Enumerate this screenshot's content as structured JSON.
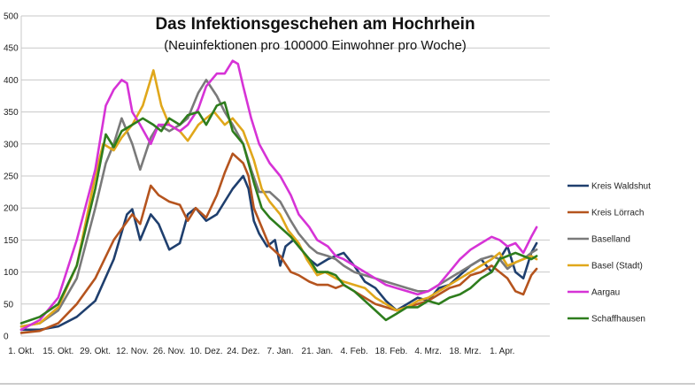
{
  "chart_data": {
    "type": "line",
    "title": "Das Infektionsgeschehen am Hochrhein",
    "subtitle": "(Neuinfektionen pro 100000 Einwohner pro Woche)",
    "x_ticks": [
      "1. Okt.",
      "15. Okt.",
      "29. Okt.",
      "12. Nov.",
      "26. Nov.",
      "10. Dez.",
      "24. Dez.",
      "7. Jan.",
      "21. Jan.",
      "4. Feb.",
      "18. Feb.",
      "4. Mrz.",
      "18. Mrz.",
      "1. Apr."
    ],
    "x_tick_days": [
      0,
      14,
      28,
      42,
      56,
      70,
      84,
      98,
      112,
      126,
      140,
      154,
      168,
      182
    ],
    "xlim": [
      0,
      200
    ],
    "ylim": [
      0,
      500
    ],
    "y_ticks": [
      0,
      50,
      100,
      150,
      200,
      250,
      300,
      350,
      400,
      450,
      500
    ],
    "grid": true,
    "legend_position": "right",
    "series": [
      {
        "name": "Kreis Waldshut",
        "color": "#1f3f6e",
        "x": [
          0,
          7,
          14,
          21,
          28,
          35,
          40,
          42,
          45,
          49,
          52,
          56,
          60,
          63,
          66,
          70,
          74,
          77,
          80,
          84,
          86,
          88,
          90,
          93,
          96,
          98,
          100,
          103,
          106,
          109,
          112,
          116,
          119,
          122,
          126,
          130,
          134,
          138,
          142,
          146,
          150,
          154,
          158,
          162,
          166,
          170,
          174,
          178,
          181,
          184,
          187,
          190,
          193,
          195
        ],
        "values": [
          10,
          10,
          15,
          30,
          55,
          120,
          190,
          198,
          150,
          190,
          175,
          135,
          145,
          190,
          200,
          180,
          190,
          210,
          230,
          250,
          230,
          180,
          160,
          140,
          150,
          110,
          140,
          150,
          135,
          120,
          110,
          120,
          125,
          130,
          110,
          85,
          75,
          55,
          40,
          50,
          60,
          55,
          75,
          80,
          95,
          110,
          120,
          100,
          120,
          140,
          100,
          90,
          130,
          145
        ]
      },
      {
        "name": "Kreis Lörrach",
        "color": "#b5541e",
        "x": [
          0,
          7,
          14,
          21,
          28,
          35,
          42,
          45,
          49,
          52,
          56,
          60,
          63,
          66,
          70,
          74,
          77,
          80,
          84,
          86,
          88,
          91,
          94,
          98,
          102,
          105,
          109,
          112,
          116,
          119,
          122,
          126,
          130,
          134,
          138,
          142,
          146,
          150,
          154,
          158,
          162,
          166,
          170,
          174,
          178,
          181,
          184,
          187,
          190,
          193,
          195
        ],
        "values": [
          5,
          8,
          20,
          50,
          90,
          150,
          190,
          175,
          235,
          220,
          210,
          205,
          180,
          200,
          185,
          220,
          255,
          285,
          270,
          250,
          200,
          170,
          140,
          125,
          100,
          95,
          85,
          80,
          80,
          75,
          80,
          70,
          60,
          50,
          45,
          40,
          45,
          50,
          55,
          65,
          75,
          80,
          95,
          100,
          110,
          100,
          90,
          70,
          65,
          95,
          105
        ]
      },
      {
        "name": "Baselland",
        "color": "#7a7a7a",
        "x": [
          0,
          7,
          14,
          21,
          28,
          32,
          35,
          38,
          42,
          45,
          49,
          52,
          56,
          60,
          63,
          67,
          70,
          74,
          77,
          80,
          84,
          87,
          90,
          94,
          98,
          102,
          105,
          109,
          112,
          116,
          119,
          122,
          126,
          130,
          134,
          138,
          142,
          146,
          150,
          154,
          158,
          162,
          166,
          170,
          174,
          178,
          181,
          184,
          187,
          190,
          193,
          195
        ],
        "values": [
          15,
          20,
          40,
          90,
          200,
          270,
          300,
          340,
          300,
          260,
          310,
          330,
          320,
          330,
          340,
          380,
          400,
          375,
          350,
          330,
          300,
          260,
          225,
          225,
          210,
          180,
          160,
          140,
          130,
          125,
          120,
          110,
          100,
          95,
          90,
          85,
          80,
          75,
          70,
          70,
          80,
          90,
          100,
          110,
          120,
          125,
          120,
          105,
          115,
          120,
          130,
          135
        ]
      },
      {
        "name": "Basel (Stadt)",
        "color": "#e0a71b",
        "x": [
          0,
          7,
          14,
          21,
          28,
          31,
          35,
          38,
          42,
          46,
          50,
          53,
          56,
          60,
          63,
          67,
          70,
          73,
          77,
          80,
          84,
          88,
          91,
          94,
          98,
          101,
          105,
          108,
          112,
          115,
          119,
          122,
          126,
          130,
          134,
          138,
          142,
          146,
          150,
          154,
          158,
          162,
          166,
          170,
          174,
          178,
          181,
          184,
          187,
          190,
          193,
          195
        ],
        "values": [
          15,
          20,
          45,
          110,
          250,
          300,
          290,
          310,
          330,
          360,
          415,
          360,
          330,
          320,
          305,
          330,
          340,
          350,
          330,
          340,
          320,
          275,
          230,
          210,
          190,
          165,
          145,
          120,
          95,
          100,
          90,
          85,
          80,
          75,
          60,
          50,
          40,
          45,
          55,
          60,
          70,
          80,
          90,
          100,
          110,
          120,
          130,
          110,
          115,
          120,
          125,
          120
        ]
      },
      {
        "name": "Aargau",
        "color": "#d633d6",
        "x": [
          0,
          7,
          14,
          21,
          28,
          32,
          35,
          38,
          40,
          42,
          45,
          49,
          52,
          56,
          60,
          63,
          67,
          70,
          74,
          77,
          80,
          82,
          84,
          87,
          90,
          94,
          98,
          102,
          105,
          109,
          112,
          116,
          119,
          122,
          126,
          130,
          134,
          138,
          142,
          146,
          150,
          154,
          158,
          162,
          166,
          170,
          174,
          178,
          181,
          184,
          187,
          190,
          193,
          195
        ],
        "values": [
          10,
          25,
          60,
          150,
          260,
          360,
          385,
          400,
          395,
          350,
          330,
          300,
          330,
          330,
          320,
          330,
          355,
          390,
          410,
          410,
          430,
          425,
          390,
          340,
          300,
          270,
          250,
          220,
          190,
          170,
          150,
          140,
          125,
          120,
          110,
          100,
          90,
          80,
          75,
          70,
          65,
          70,
          80,
          100,
          120,
          135,
          145,
          155,
          150,
          140,
          145,
          130,
          155,
          170
        ]
      },
      {
        "name": "Schaffhausen",
        "color": "#2e7d1d",
        "x": [
          0,
          7,
          14,
          21,
          28,
          32,
          35,
          38,
          42,
          46,
          50,
          53,
          56,
          60,
          63,
          67,
          70,
          74,
          77,
          80,
          84,
          88,
          91,
          94,
          98,
          102,
          105,
          109,
          112,
          116,
          119,
          122,
          126,
          130,
          134,
          138,
          142,
          146,
          150,
          154,
          158,
          162,
          166,
          170,
          174,
          178,
          181,
          184,
          187,
          190,
          193,
          195
        ],
        "values": [
          20,
          30,
          50,
          110,
          230,
          315,
          295,
          320,
          330,
          340,
          330,
          320,
          340,
          330,
          345,
          350,
          330,
          360,
          365,
          320,
          300,
          240,
          200,
          185,
          170,
          155,
          140,
          120,
          100,
          100,
          95,
          80,
          70,
          55,
          40,
          25,
          35,
          45,
          45,
          55,
          50,
          60,
          65,
          75,
          90,
          100,
          120,
          125,
          130,
          125,
          120,
          125
        ]
      }
    ]
  }
}
